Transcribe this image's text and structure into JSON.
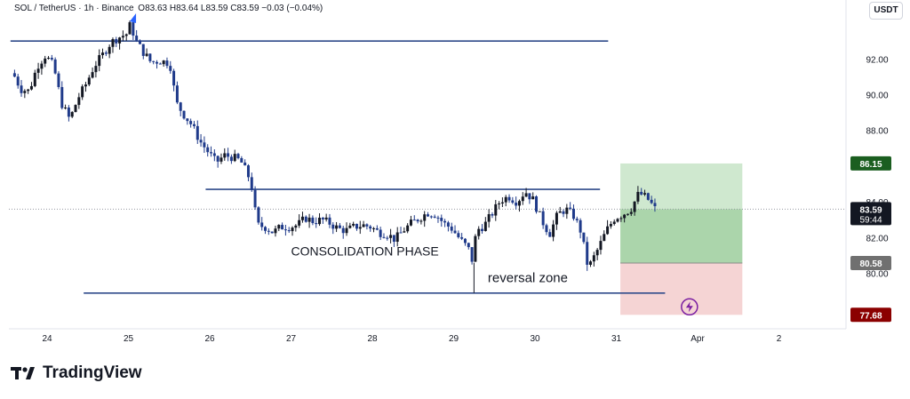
{
  "header": {
    "symbol": "SOL / TetherUS · 1h · Binance",
    "ohlc": "O83.63  H83.64  L83.59  C83.59  −0.03 (−0.04%)"
  },
  "currency": "USDT",
  "brand": "TradingView",
  "colors": {
    "up_candle": "#131722",
    "down_candle": "#1f3a8a",
    "level_line": "#2f4a8a",
    "profit_zone": "#a8d5a8",
    "loss_zone": "#f1c6c6",
    "target_badge": "#1b5e20",
    "stop_badge": "#8b0000",
    "price_badge": "#131722",
    "entry_badge": "#707070"
  },
  "chart_data": {
    "type": "candlestick",
    "title": "",
    "ylim": [
      76.9,
      94.3
    ],
    "y_ticks": [
      "92.00",
      "90.00",
      "88.00",
      "86.15",
      "84.00",
      "83.59",
      "82.00",
      "80.58",
      "80.00",
      "77.68"
    ],
    "x_ticks": [
      {
        "label": "24",
        "day": 0
      },
      {
        "label": "25",
        "day": 1
      },
      {
        "label": "26",
        "day": 2
      },
      {
        "label": "27",
        "day": 3
      },
      {
        "label": "28",
        "day": 4
      },
      {
        "label": "29",
        "day": 5
      },
      {
        "label": "30",
        "day": 6
      },
      {
        "label": "31",
        "day": 7
      },
      {
        "label": "Apr",
        "day": 8
      },
      {
        "label": "2",
        "day": 9
      }
    ],
    "price_path": [
      [
        -0.4,
        91.2
      ],
      [
        -0.3,
        90.3
      ],
      [
        -0.2,
        90.2
      ],
      [
        -0.1,
        91.6
      ],
      [
        0.0,
        92.2
      ],
      [
        0.1,
        91.6
      ],
      [
        0.2,
        89.5
      ],
      [
        0.3,
        88.6
      ],
      [
        0.4,
        89.8
      ],
      [
        0.5,
        90.6
      ],
      [
        0.6,
        91.6
      ],
      [
        0.7,
        92.2
      ],
      [
        0.8,
        92.9
      ],
      [
        0.9,
        93.2
      ],
      [
        1.0,
        93.4
      ],
      [
        1.05,
        94.0
      ],
      [
        1.1,
        93.1
      ],
      [
        1.2,
        92.4
      ],
      [
        1.3,
        91.8
      ],
      [
        1.4,
        91.9
      ],
      [
        1.5,
        91.8
      ],
      [
        1.55,
        91.5
      ],
      [
        1.6,
        89.6
      ],
      [
        1.7,
        88.9
      ],
      [
        1.8,
        88.3
      ],
      [
        1.9,
        87.4
      ],
      [
        2.0,
        86.8
      ],
      [
        2.1,
        86.2
      ],
      [
        2.2,
        86.6
      ],
      [
        2.3,
        86.5
      ],
      [
        2.4,
        86.3
      ],
      [
        2.5,
        85.4
      ],
      [
        2.55,
        84.6
      ],
      [
        2.6,
        82.7
      ],
      [
        2.7,
        82.6
      ],
      [
        2.8,
        82.3
      ],
      [
        2.9,
        82.6
      ],
      [
        3.0,
        82.6
      ],
      [
        3.1,
        82.7
      ],
      [
        3.2,
        83.1
      ],
      [
        3.3,
        82.9
      ],
      [
        3.4,
        83.0
      ],
      [
        3.5,
        82.8
      ],
      [
        3.6,
        82.5
      ],
      [
        3.7,
        82.4
      ],
      [
        3.8,
        82.6
      ],
      [
        3.9,
        82.7
      ],
      [
        4.0,
        82.6
      ],
      [
        4.1,
        82.3
      ],
      [
        4.2,
        82.2
      ],
      [
        4.3,
        81.9
      ],
      [
        4.4,
        82.4
      ],
      [
        4.5,
        82.8
      ],
      [
        4.6,
        83.1
      ],
      [
        4.7,
        83.4
      ],
      [
        4.8,
        83.3
      ],
      [
        4.9,
        82.8
      ],
      [
        5.0,
        82.5
      ],
      [
        5.1,
        81.9
      ],
      [
        5.2,
        81.4
      ],
      [
        5.25,
        80.7
      ],
      [
        5.3,
        82.4
      ],
      [
        5.4,
        82.7
      ],
      [
        5.5,
        83.4
      ],
      [
        5.6,
        84.1
      ],
      [
        5.7,
        84.3
      ],
      [
        5.8,
        84.0
      ],
      [
        5.9,
        84.6
      ],
      [
        6.0,
        84.1
      ],
      [
        6.1,
        83.0
      ],
      [
        6.2,
        82.2
      ],
      [
        6.3,
        83.3
      ],
      [
        6.4,
        83.6
      ],
      [
        6.5,
        83.2
      ],
      [
        6.6,
        82.2
      ],
      [
        6.65,
        80.6
      ],
      [
        6.7,
        80.5
      ],
      [
        6.8,
        81.4
      ],
      [
        6.9,
        82.4
      ],
      [
        7.0,
        83.1
      ],
      [
        7.1,
        83.3
      ],
      [
        7.2,
        83.6
      ],
      [
        7.3,
        84.5
      ],
      [
        7.4,
        84.2
      ],
      [
        7.5,
        83.59
      ]
    ],
    "annotations": {
      "consolidation_label": "CONSOLIDATION PHASE",
      "reversal_label": "reversal zone"
    },
    "levels": [
      {
        "name": "top",
        "price": 93.0,
        "from_day": -0.45,
        "to_day": 6.9
      },
      {
        "name": "range-top",
        "price": 84.7,
        "from_day": 1.95,
        "to_day": 6.8
      },
      {
        "name": "range-bottom",
        "price": 78.9,
        "from_day": 0.45,
        "to_day": 7.6
      }
    ],
    "position": {
      "entry": 80.58,
      "target": 86.15,
      "stop": 77.68,
      "current": 83.59,
      "countdown": "59:44",
      "from_day": 7.05,
      "to_day": 8.55
    }
  }
}
